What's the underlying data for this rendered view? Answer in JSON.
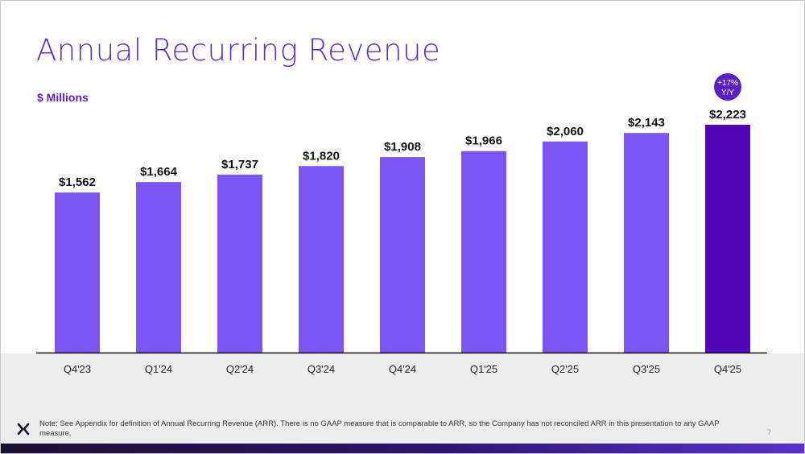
{
  "slide": {
    "title": "Annual Recurring Revenue",
    "unit_label": "$ Millions",
    "note": "Note: See Appendix for definition of Annual Recurring Revenue (ARR). There is no GAAP measure that is comparable to ARR, so the Company has not reconciled ARR in this presentation to any GAAP measure.",
    "page_number": "7",
    "logo_icon": "x-logo-icon"
  },
  "chart_data": {
    "type": "bar",
    "categories": [
      "Q4'23",
      "Q1'24",
      "Q2'24",
      "Q3'24",
      "Q4'24",
      "Q1'25",
      "Q2'25",
      "Q3'25",
      "Q4'25"
    ],
    "values": [
      1562,
      1664,
      1737,
      1820,
      1908,
      1966,
      2060,
      2143,
      2223
    ],
    "data_labels": [
      "$1,562",
      "$1,664",
      "$1,737",
      "$1,820",
      "$1,908",
      "$1,966",
      "$2,060",
      "$2,143",
      "$2,223"
    ],
    "ylim": [
      0,
      2223
    ],
    "title": "",
    "xlabel": "",
    "ylabel": "$ Millions",
    "grid": false,
    "bar_color": "#7b55f5",
    "highlight_color": "#5006b8",
    "highlight_index": 8,
    "annotation": {
      "line1": "+17%",
      "line2": "Y/Y",
      "index": 8,
      "color": "#5a1fc4"
    }
  }
}
